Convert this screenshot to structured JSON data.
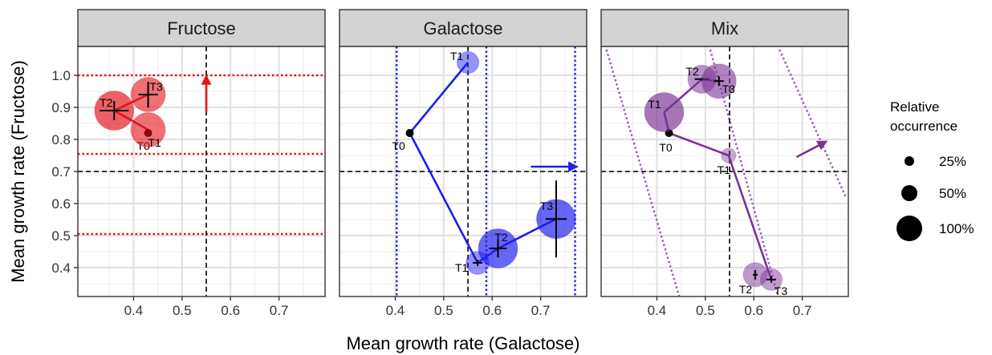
{
  "chart_data": {
    "type": "scatter",
    "xlabel": "Mean growth rate (Galactose)",
    "ylabel": "Mean growth rate (Fructose)",
    "xlim": [
      0.285,
      0.795
    ],
    "ylim": [
      0.31,
      1.09
    ],
    "x_ticks": [
      0.4,
      0.5,
      0.6,
      0.7
    ],
    "x_tick_labels": [
      "0.4",
      "0.5",
      "0.6",
      "0.7"
    ],
    "y_ticks": [
      0.4,
      0.5,
      0.6,
      0.7,
      0.8,
      0.9,
      1.0
    ],
    "y_tick_labels": [
      "0.4",
      "0.5",
      "0.6",
      "0.7",
      "0.8",
      "0.9",
      "1.0"
    ],
    "grid": true,
    "legend": {
      "title_lines": [
        "Relative",
        "occurrence"
      ],
      "placement": "right",
      "entries": [
        {
          "label": "25%",
          "value": 25
        },
        {
          "label": "50%",
          "value": 50
        },
        {
          "label": "100%",
          "value": 100
        }
      ]
    },
    "ref_lines": {
      "x": 0.55,
      "y": 0.7
    },
    "panels": [
      {
        "title": "Fructose",
        "color": "#e4121b",
        "points": [
          {
            "label": "T0",
            "x": 0.43,
            "y": 0.82,
            "occurrence": 8,
            "xerr": 0,
            "yerr": 0
          },
          {
            "label": "T1",
            "x": 0.43,
            "y": 0.83,
            "occurrence": 45,
            "xerr": 0,
            "yerr": 0
          },
          {
            "label": "T2",
            "x": 0.36,
            "y": 0.89,
            "occurrence": 58,
            "xerr": 0.03,
            "yerr": 0.03
          },
          {
            "label": "T3",
            "x": 0.43,
            "y": 0.94,
            "occurrence": 45,
            "xerr": 0.02,
            "yerr": 0.04
          }
        ],
        "guide_lines": {
          "orientation": "horizontal",
          "color": "#e4121b",
          "values": [
            0.505,
            0.755,
            1.0
          ]
        },
        "arrow": {
          "from": [
            0.55,
            0.885
          ],
          "to": [
            0.55,
            0.99
          ]
        }
      },
      {
        "title": "Galactose",
        "color": "#1d1df0",
        "points": [
          {
            "label": "T0",
            "x": 0.43,
            "y": 0.82,
            "occurrence": 8,
            "xerr": 0,
            "yerr": 0
          },
          {
            "label": "T1",
            "x": 0.55,
            "y": 1.04,
            "occurrence": 18,
            "xerr": 0,
            "yerr": 0
          },
          {
            "label": "T1",
            "x": 0.57,
            "y": 0.415,
            "occurrence": 20,
            "xerr": 0.01,
            "yerr": 0.01
          },
          {
            "label": "T2",
            "x": 0.612,
            "y": 0.46,
            "occurrence": 58,
            "xerr": 0.018,
            "yerr": 0.028
          },
          {
            "label": "T3",
            "x": 0.732,
            "y": 0.552,
            "occurrence": 58,
            "xerr": 0.022,
            "yerr": 0.12
          }
        ],
        "connections": [
          [
            1,
            0
          ],
          [
            0,
            2
          ],
          [
            2,
            3
          ],
          [
            3,
            4
          ]
        ],
        "guide_lines": {
          "orientation": "vertical",
          "color": "#1d1df0",
          "values": [
            0.403,
            0.588,
            0.771
          ]
        },
        "arrow": {
          "from": [
            0.68,
            0.715
          ],
          "to": [
            0.77,
            0.715
          ]
        }
      },
      {
        "title": "Mix",
        "color": "#7b3294",
        "points": [
          {
            "label": "T0",
            "x": 0.425,
            "y": 0.82,
            "occurrence": 8,
            "xerr": 0,
            "yerr": 0
          },
          {
            "label": "T1",
            "x": 0.415,
            "y": 0.885,
            "occurrence": 58,
            "xerr": 0,
            "yerr": 0
          },
          {
            "label": "T1",
            "x": 0.548,
            "y": 0.75,
            "occurrence": 8,
            "xerr": 0,
            "yerr": 0
          },
          {
            "label": "T2",
            "x": 0.493,
            "y": 0.988,
            "occurrence": 30,
            "xerr": 0.015,
            "yerr": 0.005
          },
          {
            "label": "T3",
            "x": 0.528,
            "y": 0.982,
            "occurrence": 45,
            "xerr": 0.01,
            "yerr": 0.015
          },
          {
            "label": "T2",
            "x": 0.603,
            "y": 0.378,
            "occurrence": 22,
            "xerr": 0.005,
            "yerr": 0.015
          },
          {
            "label": "T3",
            "x": 0.636,
            "y": 0.363,
            "occurrence": 18,
            "xerr": 0.01,
            "yerr": 0.01
          }
        ],
        "connections": [
          [
            1,
            0
          ],
          [
            0,
            2
          ],
          [
            2,
            6
          ],
          [
            1,
            3
          ],
          [
            3,
            4
          ]
        ],
        "guide_lines": {
          "orientation": "diagonal",
          "color": "#9b59b6",
          "segments": [
            [
              [
                0.296,
                1.08
              ],
              [
                0.446,
                0.31
              ]
            ],
            [
              [
                0.51,
                1.08
              ],
              [
                0.65,
                0.31
              ]
            ],
            [
              [
                0.653,
                1.08
              ],
              [
                0.79,
                0.62
              ]
            ]
          ]
        },
        "arrow": {
          "from": [
            0.688,
            0.745
          ],
          "to": [
            0.745,
            0.79
          ]
        }
      }
    ]
  }
}
